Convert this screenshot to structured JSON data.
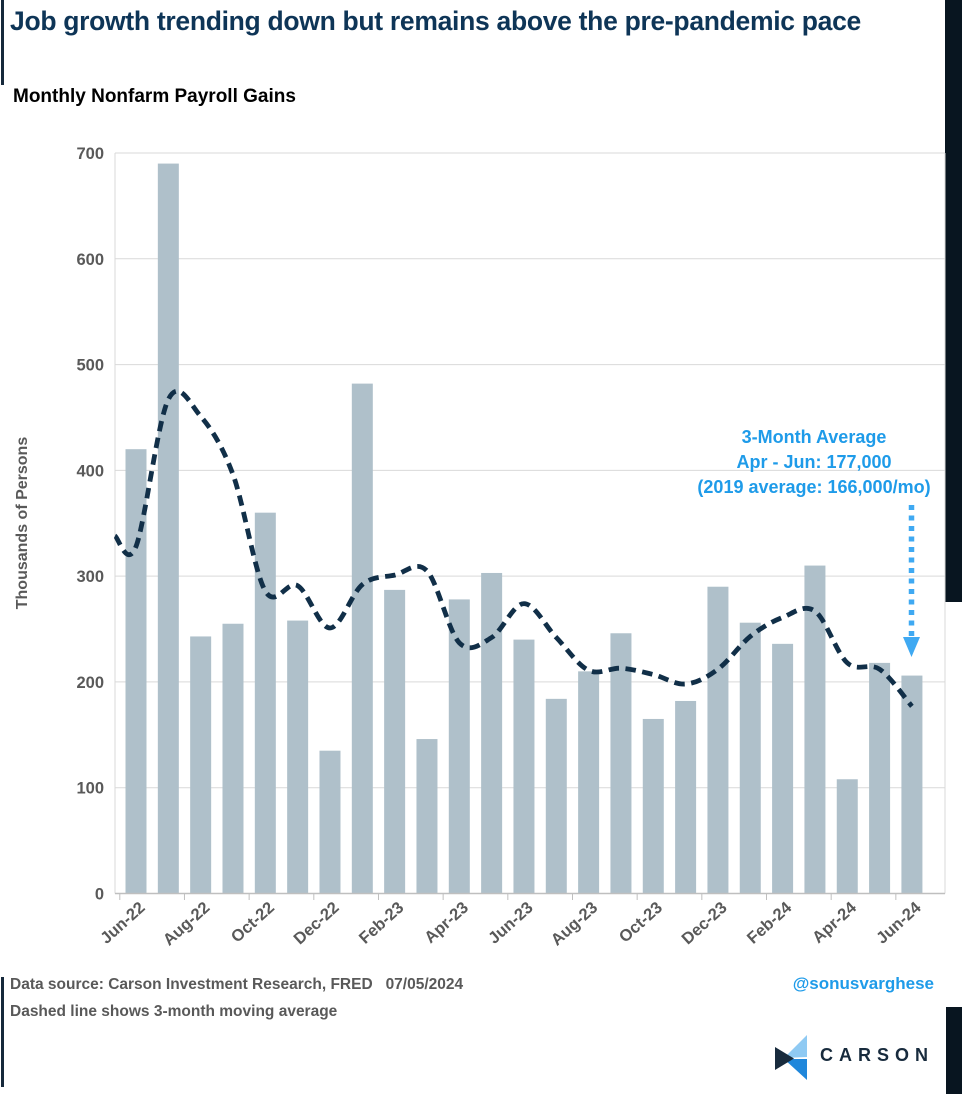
{
  "page": {
    "title": "Job growth trending down but remains above the pre-pandemic pace",
    "subtitle": "Monthly Nonfarm Payroll Gains"
  },
  "chart_data": {
    "type": "bar",
    "title": "Monthly Nonfarm Payroll Gains",
    "ylabel": "Thousands of Persons",
    "ylim": [
      0,
      700
    ],
    "ytick_interval": 100,
    "grid": "horizontal",
    "legend_position": "none",
    "categories": [
      "Jun-22",
      "Jul-22",
      "Aug-22",
      "Sep-22",
      "Oct-22",
      "Nov-22",
      "Dec-22",
      "Jan-23",
      "Feb-23",
      "Mar-23",
      "Apr-23",
      "May-23",
      "Jun-23",
      "Jul-23",
      "Aug-23",
      "Sep-23",
      "Oct-23",
      "Nov-23",
      "Dec-23",
      "Jan-24",
      "Feb-24",
      "Mar-24",
      "Apr-24",
      "May-24",
      "Jun-24"
    ],
    "xtick_labels": [
      "Jun-22",
      "Aug-22",
      "Oct-22",
      "Dec-22",
      "Feb-23",
      "Apr-23",
      "Jun-23",
      "Aug-23",
      "Oct-23",
      "Dec-23",
      "Feb-24",
      "Apr-24",
      "Jun-24"
    ],
    "series": [
      {
        "name": "Monthly payroll gains",
        "type": "bar",
        "color": "#afc0ca",
        "values": [
          420,
          690,
          243,
          255,
          360,
          258,
          135,
          482,
          287,
          146,
          278,
          303,
          240,
          184,
          210,
          246,
          165,
          182,
          290,
          256,
          236,
          310,
          108,
          218,
          206
        ]
      },
      {
        "name": "3-month moving average",
        "type": "line",
        "style": "dashed",
        "color": "#112f48",
        "values": [
          328,
          467,
          451,
          396,
          286,
          291,
          251,
          292,
          301,
          305,
          237,
          242,
          274,
          242,
          211,
          213,
          207,
          198,
          212,
          243,
          261,
          267,
          218,
          212,
          177
        ],
        "edge_start_value": 338
      }
    ]
  },
  "annotation": {
    "lines": [
      "3-Month Average",
      "Apr - Jun: 177,000",
      "(2019 average: 166,000/mo)"
    ],
    "color": "#1e9be9",
    "arrow_icon": "dotted-down-arrow",
    "arrow_color": "#3fa9f2"
  },
  "footer": {
    "source_line": "Data source: Carson Investment Research, FRED   07/05/2024",
    "note_line": "Dashed line shows 3-month moving average",
    "handle": "@sonusvarghese",
    "brand": "CARSON"
  },
  "colors": {
    "title_navy": "#0e3557",
    "bar": "#afc0ca",
    "ma_line": "#112f48",
    "axis_text": "#595959",
    "gridline": "#d9d9d9",
    "axis_line": "#bfbfbf",
    "accent_blue": "#1e9be9",
    "frame_dark": "#081520",
    "logo_light_blue": "#8fcaf3",
    "logo_mid_blue": "#1f87db",
    "logo_navy": "#182b3d"
  }
}
